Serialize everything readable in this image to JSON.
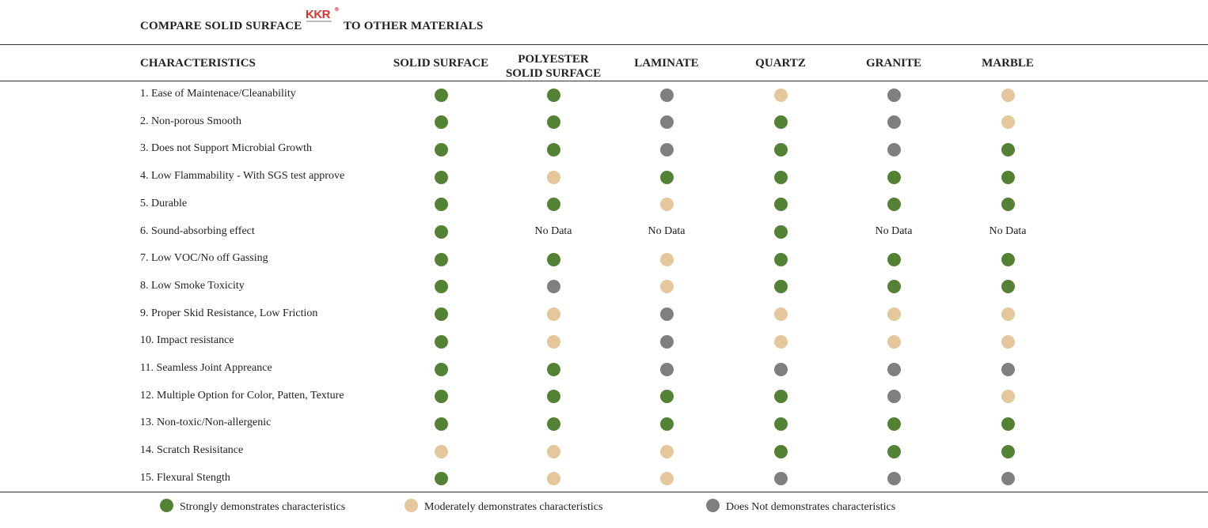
{
  "title": {
    "part1": "COMPARE SOLID SURFACE",
    "logo_text": "KKR",
    "logo_mark": "®",
    "part2": "TO OTHER MATERIALS"
  },
  "colors": {
    "strong": "#548235",
    "moderate": "#e4c79a",
    "none": "#7f7f7f"
  },
  "headers": {
    "characteristics": "CHARACTERISTICS",
    "columns": [
      {
        "line1": "SOLID SURFACE",
        "line2": ""
      },
      {
        "line1": "POLYESTER",
        "line2": "SOLID SURFACE"
      },
      {
        "line1": "LAMINATE",
        "line2": ""
      },
      {
        "line1": "QUARTZ",
        "line2": ""
      },
      {
        "line1": "GRANITE",
        "line2": ""
      },
      {
        "line1": "MARBLE",
        "line2": ""
      }
    ]
  },
  "rows": [
    {
      "label": "1. Ease of Maintenace/Cleanability",
      "ratings": [
        "strong",
        "strong",
        "none",
        "moderate",
        "none",
        "moderate"
      ]
    },
    {
      "label": "2. Non-porous Smooth",
      "ratings": [
        "strong",
        "strong",
        "none",
        "strong",
        "none",
        "moderate"
      ]
    },
    {
      "label": "3. Does not Support Microbial Growth",
      "ratings": [
        "strong",
        "strong",
        "none",
        "strong",
        "none",
        "strong"
      ]
    },
    {
      "label": "4. Low Flammability - With SGS test approve",
      "ratings": [
        "strong",
        "moderate",
        "strong",
        "strong",
        "strong",
        "strong"
      ]
    },
    {
      "label": "5. Durable",
      "ratings": [
        "strong",
        "strong",
        "moderate",
        "strong",
        "strong",
        "strong"
      ]
    },
    {
      "label": "6. Sound-absorbing effect",
      "ratings": [
        "strong",
        "No Data",
        "No Data",
        "strong",
        "No Data",
        "No Data"
      ]
    },
    {
      "label": "7. Low VOC/No off Gassing",
      "ratings": [
        "strong",
        "strong",
        "moderate",
        "strong",
        "strong",
        "strong"
      ]
    },
    {
      "label": "8. Low Smoke Toxicity",
      "ratings": [
        "strong",
        "none",
        "moderate",
        "strong",
        "strong",
        "strong"
      ]
    },
    {
      "label": "9. Proper Skid Resistance, Low Friction",
      "ratings": [
        "strong",
        "moderate",
        "none",
        "moderate",
        "moderate",
        "moderate"
      ]
    },
    {
      "label": "10. Impact resistance",
      "ratings": [
        "strong",
        "moderate",
        "none",
        "moderate",
        "moderate",
        "moderate"
      ]
    },
    {
      "label": "11. Seamless Joint Appreance",
      "ratings": [
        "strong",
        "strong",
        "none",
        "none",
        "none",
        "none"
      ]
    },
    {
      "label": "12. Multiple Option for Color, Patten, Texture",
      "ratings": [
        "strong",
        "strong",
        "strong",
        "strong",
        "none",
        "moderate"
      ]
    },
    {
      "label": "13. Non-toxic/Non-allergenic",
      "ratings": [
        "strong",
        "strong",
        "strong",
        "strong",
        "strong",
        "strong"
      ]
    },
    {
      "label": "14. Scratch Resisitance",
      "ratings": [
        "moderate",
        "moderate",
        "moderate",
        "strong",
        "strong",
        "strong"
      ]
    },
    {
      "label": "15. Flexural Stength",
      "ratings": [
        "strong",
        "moderate",
        "moderate",
        "none",
        "none",
        "none"
      ]
    }
  ],
  "legend": {
    "strong": "Strongly demonstrates characteristics",
    "moderate": "Moderately demonstrates characteristics",
    "none": "Does Not demonstrates characteristics"
  }
}
